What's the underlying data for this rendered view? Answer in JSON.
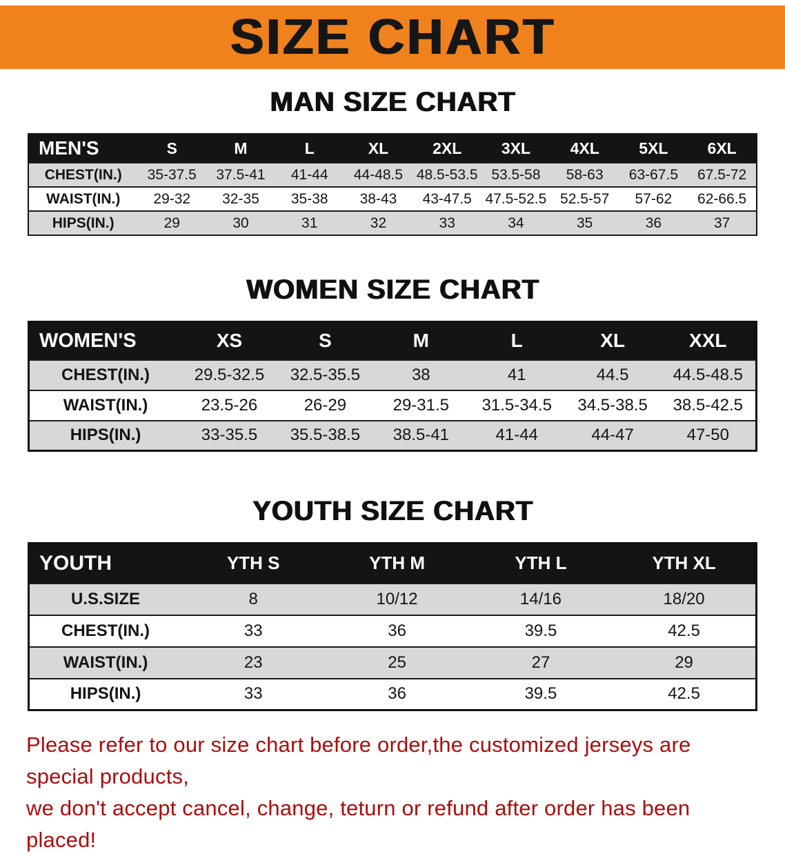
{
  "banner": {
    "title": "SIZE CHART"
  },
  "colors": {
    "banner_bg": "#f0821e",
    "table_header_bg": "#141414",
    "table_row_alt": "#d8d8d8",
    "notice_text": "#ab0d0d"
  },
  "sections": [
    {
      "heading": "MAN SIZE CHART",
      "table": {
        "header": [
          "MEN'S",
          "S",
          "M",
          "L",
          "XL",
          "2XL",
          "3XL",
          "4XL",
          "5XL",
          "6XL"
        ],
        "rows": [
          [
            "CHEST(IN.)",
            "35-37.5",
            "37.5-41",
            "41-44",
            "44-48.5",
            "48.5-53.5",
            "53.5-58",
            "58-63",
            "63-67.5",
            "67.5-72"
          ],
          [
            "WAIST(IN.)",
            "29-32",
            "32-35",
            "35-38",
            "38-43",
            "43-47.5",
            "47.5-52.5",
            "52.5-57",
            "57-62",
            "62-66.5"
          ],
          [
            "HIPS(IN.)",
            "29",
            "30",
            "31",
            "32",
            "33",
            "34",
            "35",
            "36",
            "37"
          ]
        ]
      }
    },
    {
      "heading": "WOMEN SIZE CHART",
      "table": {
        "header": [
          "WOMEN'S",
          "XS",
          "S",
          "M",
          "L",
          "XL",
          "XXL"
        ],
        "rows": [
          [
            "CHEST(IN.)",
            "29.5-32.5",
            "32.5-35.5",
            "38",
            "41",
            "44.5",
            "44.5-48.5"
          ],
          [
            "WAIST(IN.)",
            "23.5-26",
            "26-29",
            "29-31.5",
            "31.5-34.5",
            "34.5-38.5",
            "38.5-42.5"
          ],
          [
            "HIPS(IN.)",
            "33-35.5",
            "35.5-38.5",
            "38.5-41",
            "41-44",
            "44-47",
            "47-50"
          ]
        ]
      }
    },
    {
      "heading": "YOUTH SIZE CHART",
      "table": {
        "header": [
          "YOUTH",
          "YTH S",
          "YTH M",
          "YTH L",
          "YTH XL"
        ],
        "rows": [
          [
            "U.S.SIZE",
            "8",
            "10/12",
            "14/16",
            "18/20"
          ],
          [
            "CHEST(IN.)",
            "33",
            "36",
            "39.5",
            "42.5"
          ],
          [
            "WAIST(IN.)",
            "23",
            "25",
            "27",
            "29"
          ],
          [
            "HIPS(IN.)",
            "33",
            "36",
            "39.5",
            "42.5"
          ]
        ]
      }
    }
  ],
  "footer": {
    "line1": "Please refer to our size chart before order,the customized jerseys are special products,",
    "line2": "we don't accept cancel, change, teturn or refund after order has been placed!"
  }
}
